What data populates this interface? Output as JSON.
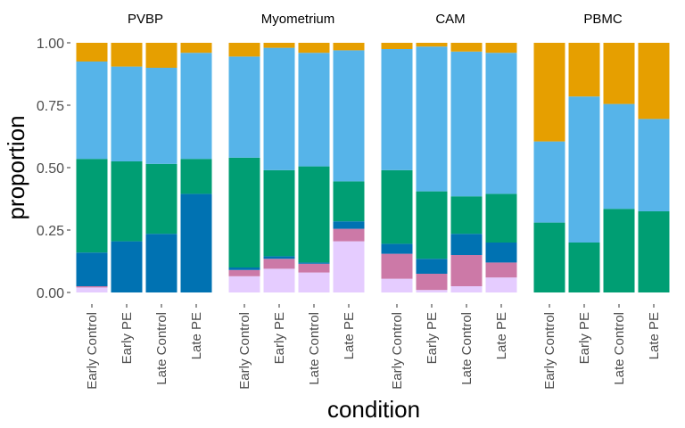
{
  "chart_data": {
    "type": "bar",
    "stacked": true,
    "xlabel": "condition",
    "ylabel": "proportion",
    "ylim": [
      0,
      1
    ],
    "y_ticks": [
      "0.00",
      "0.25",
      "0.50",
      "0.75",
      "1.00"
    ],
    "y_tick_values": [
      0,
      0.25,
      0.5,
      0.75,
      1.0
    ],
    "categories": [
      "Early Control",
      "Early PE",
      "Late Control",
      "Late PE"
    ],
    "grid": false,
    "legend": "none",
    "stack_colors": [
      "#E5CCFF",
      "#CC79A7",
      "#0072B2",
      "#009E73",
      "#56B4E9",
      "#E69F00"
    ],
    "facets": [
      {
        "label": "PVBP",
        "bars": [
          [
            0.02,
            0.005,
            0.135,
            0.375,
            0.39,
            0.075
          ],
          [
            0.0,
            0.0,
            0.205,
            0.32,
            0.38,
            0.095
          ],
          [
            0.0,
            0.0,
            0.235,
            0.28,
            0.385,
            0.1
          ],
          [
            0.0,
            0.0,
            0.395,
            0.14,
            0.425,
            0.04
          ]
        ]
      },
      {
        "label": "Myometrium",
        "bars": [
          [
            0.065,
            0.025,
            0.01,
            0.44,
            0.405,
            0.055
          ],
          [
            0.095,
            0.04,
            0.01,
            0.345,
            0.49,
            0.02
          ],
          [
            0.08,
            0.035,
            0.005,
            0.385,
            0.455,
            0.04
          ],
          [
            0.205,
            0.05,
            0.03,
            0.16,
            0.525,
            0.03
          ]
        ]
      },
      {
        "label": "CAM",
        "bars": [
          [
            0.055,
            0.1,
            0.04,
            0.295,
            0.485,
            0.025
          ],
          [
            0.01,
            0.065,
            0.06,
            0.27,
            0.58,
            0.015
          ],
          [
            0.025,
            0.125,
            0.085,
            0.15,
            0.58,
            0.035
          ],
          [
            0.06,
            0.06,
            0.08,
            0.195,
            0.565,
            0.04
          ]
        ]
      },
      {
        "label": "PBMC",
        "bars": [
          [
            0.0,
            0.0,
            0.0,
            0.28,
            0.325,
            0.395
          ],
          [
            0.0,
            0.0,
            0.0,
            0.2,
            0.585,
            0.215
          ],
          [
            0.0,
            0.0,
            0.0,
            0.335,
            0.42,
            0.245
          ],
          [
            0.0,
            0.0,
            0.0,
            0.325,
            0.37,
            0.305
          ]
        ]
      }
    ]
  }
}
